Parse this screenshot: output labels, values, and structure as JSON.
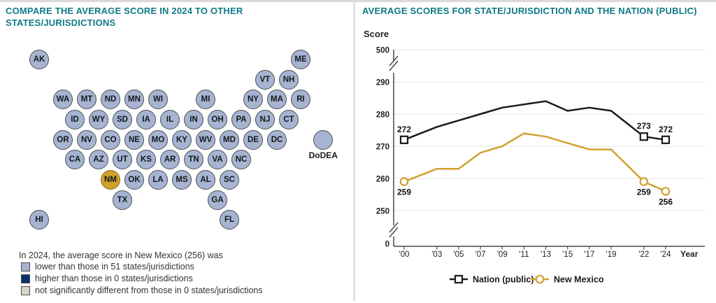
{
  "left_panel": {
    "title": "COMPARE THE AVERAGE SCORE IN 2024 TO OTHER STATES/JURISDICTIONS",
    "map": {
      "circle_color": "#A6B4D2",
      "circle_border": "#4E4F52",
      "highlight_color": "#CFA02C",
      "highlight_border": "#97751B",
      "highlighted_state": "NM",
      "states": [
        {
          "label": "AK",
          "c": -2,
          "r": 0
        },
        {
          "label": "ME",
          "c": 20,
          "r": 0
        },
        {
          "label": "VT",
          "c": 17,
          "r": 1
        },
        {
          "label": "NH",
          "c": 19,
          "r": 1
        },
        {
          "label": "WA",
          "c": 0,
          "r": 2
        },
        {
          "label": "MT",
          "c": 2,
          "r": 2
        },
        {
          "label": "ND",
          "c": 4,
          "r": 2
        },
        {
          "label": "MN",
          "c": 6,
          "r": 2
        },
        {
          "label": "WI",
          "c": 8,
          "r": 2
        },
        {
          "label": "MI",
          "c": 12,
          "r": 2
        },
        {
          "label": "NY",
          "c": 16,
          "r": 2
        },
        {
          "label": "MA",
          "c": 18,
          "r": 2
        },
        {
          "label": "RI",
          "c": 20,
          "r": 2
        },
        {
          "label": "ID",
          "c": 1,
          "r": 3
        },
        {
          "label": "WY",
          "c": 3,
          "r": 3
        },
        {
          "label": "SD",
          "c": 5,
          "r": 3
        },
        {
          "label": "IA",
          "c": 7,
          "r": 3
        },
        {
          "label": "IL",
          "c": 9,
          "r": 3
        },
        {
          "label": "IN",
          "c": 11,
          "r": 3
        },
        {
          "label": "OH",
          "c": 13,
          "r": 3
        },
        {
          "label": "PA",
          "c": 15,
          "r": 3
        },
        {
          "label": "NJ",
          "c": 17,
          "r": 3
        },
        {
          "label": "CT",
          "c": 19,
          "r": 3
        },
        {
          "label": "OR",
          "c": 0,
          "r": 4
        },
        {
          "label": "NV",
          "c": 2,
          "r": 4
        },
        {
          "label": "CO",
          "c": 4,
          "r": 4
        },
        {
          "label": "NE",
          "c": 6,
          "r": 4
        },
        {
          "label": "MO",
          "c": 8,
          "r": 4
        },
        {
          "label": "KY",
          "c": 10,
          "r": 4
        },
        {
          "label": "WV",
          "c": 12,
          "r": 4
        },
        {
          "label": "MD",
          "c": 14,
          "r": 4
        },
        {
          "label": "DE",
          "c": 16,
          "r": 4
        },
        {
          "label": "DC",
          "c": 18,
          "r": 4
        },
        {
          "label": "DoDEA",
          "c": 21.9,
          "r": 4,
          "label_outside": true
        },
        {
          "label": "CA",
          "c": 1,
          "r": 5
        },
        {
          "label": "AZ",
          "c": 3,
          "r": 5
        },
        {
          "label": "UT",
          "c": 5,
          "r": 5
        },
        {
          "label": "KS",
          "c": 7,
          "r": 5
        },
        {
          "label": "AR",
          "c": 9,
          "r": 5
        },
        {
          "label": "TN",
          "c": 11,
          "r": 5
        },
        {
          "label": "VA",
          "c": 13,
          "r": 5
        },
        {
          "label": "NC",
          "c": 15,
          "r": 5
        },
        {
          "label": "NM",
          "c": 4,
          "r": 6,
          "highlighted": true
        },
        {
          "label": "OK",
          "c": 6,
          "r": 6
        },
        {
          "label": "LA",
          "c": 8,
          "r": 6
        },
        {
          "label": "MS",
          "c": 10,
          "r": 6
        },
        {
          "label": "AL",
          "c": 12,
          "r": 6
        },
        {
          "label": "SC",
          "c": 14,
          "r": 6
        },
        {
          "label": "TX",
          "c": 5,
          "r": 7
        },
        {
          "label": "GA",
          "c": 13,
          "r": 7
        },
        {
          "label": "HI",
          "c": -2,
          "r": 8
        },
        {
          "label": "FL",
          "c": 14,
          "r": 8
        }
      ],
      "legend": {
        "intro": "In 2024, the average score in New Mexico (256) was",
        "items": [
          {
            "swatch": "#A6B4D2",
            "label": "lower than those in 51 states/jurisdictions"
          },
          {
            "swatch": "#0B2E69",
            "label": "higher than those in 0 states/jurisdictions"
          },
          {
            "swatch": "#D9D5C8",
            "label": "not significantly different from those in 0 states/jurisdictions"
          }
        ]
      }
    }
  },
  "right_panel": {
    "title": "AVERAGE SCORES FOR STATE/JURISDICTION AND THE NATION (PUBLIC)"
  },
  "chart_data": {
    "type": "line",
    "title": "AVERAGE SCORES FOR STATE/JURISDICTION AND THE NATION (PUBLIC)",
    "ylabel": "Score",
    "xlabel": "Year",
    "y_axis_break": true,
    "y_ticks": [
      0,
      250,
      260,
      270,
      280,
      290,
      500
    ],
    "ylim_shown": [
      250,
      290
    ],
    "grid": true,
    "legend_position": "bottom",
    "x": [
      2000,
      2003,
      2005,
      2007,
      2009,
      2011,
      2013,
      2015,
      2017,
      2019,
      2022,
      2024
    ],
    "x_tick_labels": [
      "'00",
      "'03",
      "'05",
      "'07",
      "'09",
      "'11",
      "'13",
      "'15",
      "'17",
      "'19",
      "'22",
      "'24"
    ],
    "series": [
      {
        "name": "Nation (public)",
        "color": "#1A1A1A",
        "marker": "square",
        "values": [
          272,
          276,
          278,
          280,
          282,
          283,
          284,
          281,
          282,
          281,
          273,
          272
        ],
        "point_labels": [
          {
            "x": 2000,
            "v": 272,
            "pos": "above"
          },
          {
            "x": 2022,
            "v": 273,
            "pos": "above"
          },
          {
            "x": 2024,
            "v": 272,
            "pos": "above"
          }
        ]
      },
      {
        "name": "New Mexico",
        "color": "#D2A12F",
        "marker": "circle",
        "values": [
          259,
          263,
          263,
          268,
          270,
          274,
          273,
          271,
          269,
          269,
          259,
          256
        ],
        "point_labels": [
          {
            "x": 2000,
            "v": 259,
            "pos": "below"
          },
          {
            "x": 2022,
            "v": 259,
            "pos": "below"
          },
          {
            "x": 2024,
            "v": 256,
            "pos": "below"
          }
        ]
      }
    ]
  }
}
